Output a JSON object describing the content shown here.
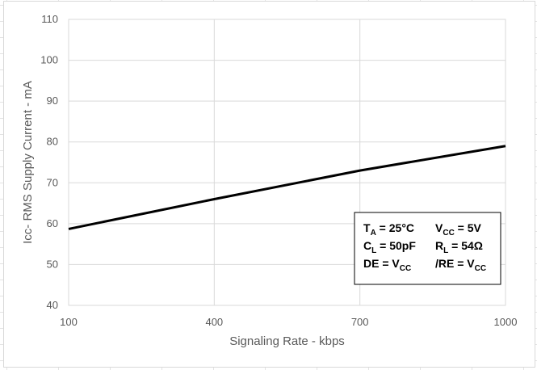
{
  "chart_data": {
    "type": "line",
    "title": "",
    "xlabel": "Signaling Rate - kbps",
    "ylabel": "Icc- RMS Supply Current - mA",
    "xlim": [
      100,
      1000
    ],
    "ylim": [
      40,
      110
    ],
    "x_ticks": [
      100,
      400,
      700,
      1000
    ],
    "y_ticks": [
      40,
      50,
      60,
      70,
      80,
      90,
      100,
      110
    ],
    "grid": true,
    "series": [
      {
        "x": [
          100,
          400,
          700,
          1000
        ],
        "values": [
          58.7,
          66,
          73,
          79
        ]
      }
    ],
    "series_color": "#000000",
    "conditions": [
      [
        {
          "main": "T",
          "sub": "A",
          "rest": " = 25°C"
        },
        {
          "main": "V",
          "sub": "CC",
          "rest": " = 5V"
        }
      ],
      [
        {
          "main": "C",
          "sub": "L",
          "rest": " = 50pF"
        },
        {
          "main": "R",
          "sub": "L",
          "rest": " = 54Ω"
        }
      ],
      [
        {
          "main": "DE = V",
          "sub": "CC",
          "rest": ""
        },
        {
          "main": "/RE = V",
          "sub": "CC",
          "rest": ""
        }
      ]
    ]
  }
}
